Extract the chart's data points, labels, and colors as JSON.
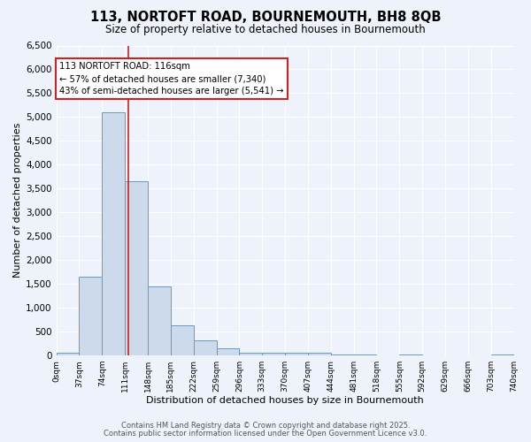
{
  "title": "113, NORTOFT ROAD, BOURNEMOUTH, BH8 8QB",
  "subtitle": "Size of property relative to detached houses in Bournemouth",
  "xlabel": "Distribution of detached houses by size in Bournemouth",
  "ylabel": "Number of detached properties",
  "bar_color": "#ccdaeb",
  "bar_edge_color": "#6699cc",
  "background_color": "#eef2fa",
  "grid_color": "#ffffff",
  "annotation_line_color": "#cc2222",
  "annotation_property": "113 NORTOFT ROAD: 116sqm",
  "annotation_smaller": "← 57% of detached houses are smaller (7,340)",
  "annotation_larger": "43% of semi-detached houses are larger (5,541) →",
  "property_size": 116,
  "bin_width": 37,
  "bin_edges": [
    0,
    37,
    74,
    111,
    148,
    185,
    222,
    259,
    296,
    333,
    370,
    407,
    444,
    481,
    518,
    555,
    592,
    629,
    666,
    703,
    740
  ],
  "bar_heights": [
    50,
    1650,
    5100,
    3650,
    1450,
    625,
    325,
    150,
    50,
    50,
    50,
    50,
    25,
    25,
    0,
    25,
    0,
    0,
    0,
    25
  ],
  "ylim": [
    0,
    6500
  ],
  "yticks": [
    0,
    500,
    1000,
    1500,
    2000,
    2500,
    3000,
    3500,
    4000,
    4500,
    5000,
    5500,
    6000,
    6500
  ],
  "footer1": "Contains HM Land Registry data © Crown copyright and database right 2025.",
  "footer2": "Contains public sector information licensed under the Open Government Licence v3.0."
}
